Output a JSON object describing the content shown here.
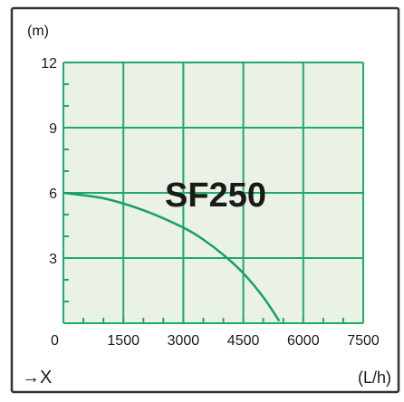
{
  "chart_data": {
    "type": "line",
    "title": "SF250",
    "ylabel": "(m)",
    "xlabel": "(L/h)",
    "x_axis_marker": "→X",
    "x_ticks": [
      0,
      1500,
      3000,
      4500,
      6000,
      7500
    ],
    "y_ticks": [
      3,
      6,
      9,
      12
    ],
    "xlim": [
      0,
      7500
    ],
    "ylim": [
      0,
      12
    ],
    "grid": true,
    "series": [
      {
        "x": [
          0,
          1000,
          2000,
          3000,
          3500,
          4000,
          4500,
          5000,
          5400
        ],
        "y": [
          6.0,
          5.75,
          5.2,
          4.4,
          3.85,
          3.15,
          2.3,
          1.2,
          0.1
        ]
      }
    ],
    "colors": {
      "plot_bg": "#e9f2e4",
      "grid": "#1faa6a",
      "line": "#17a066",
      "frame": "#333333",
      "text": "#1a1a1a"
    }
  }
}
